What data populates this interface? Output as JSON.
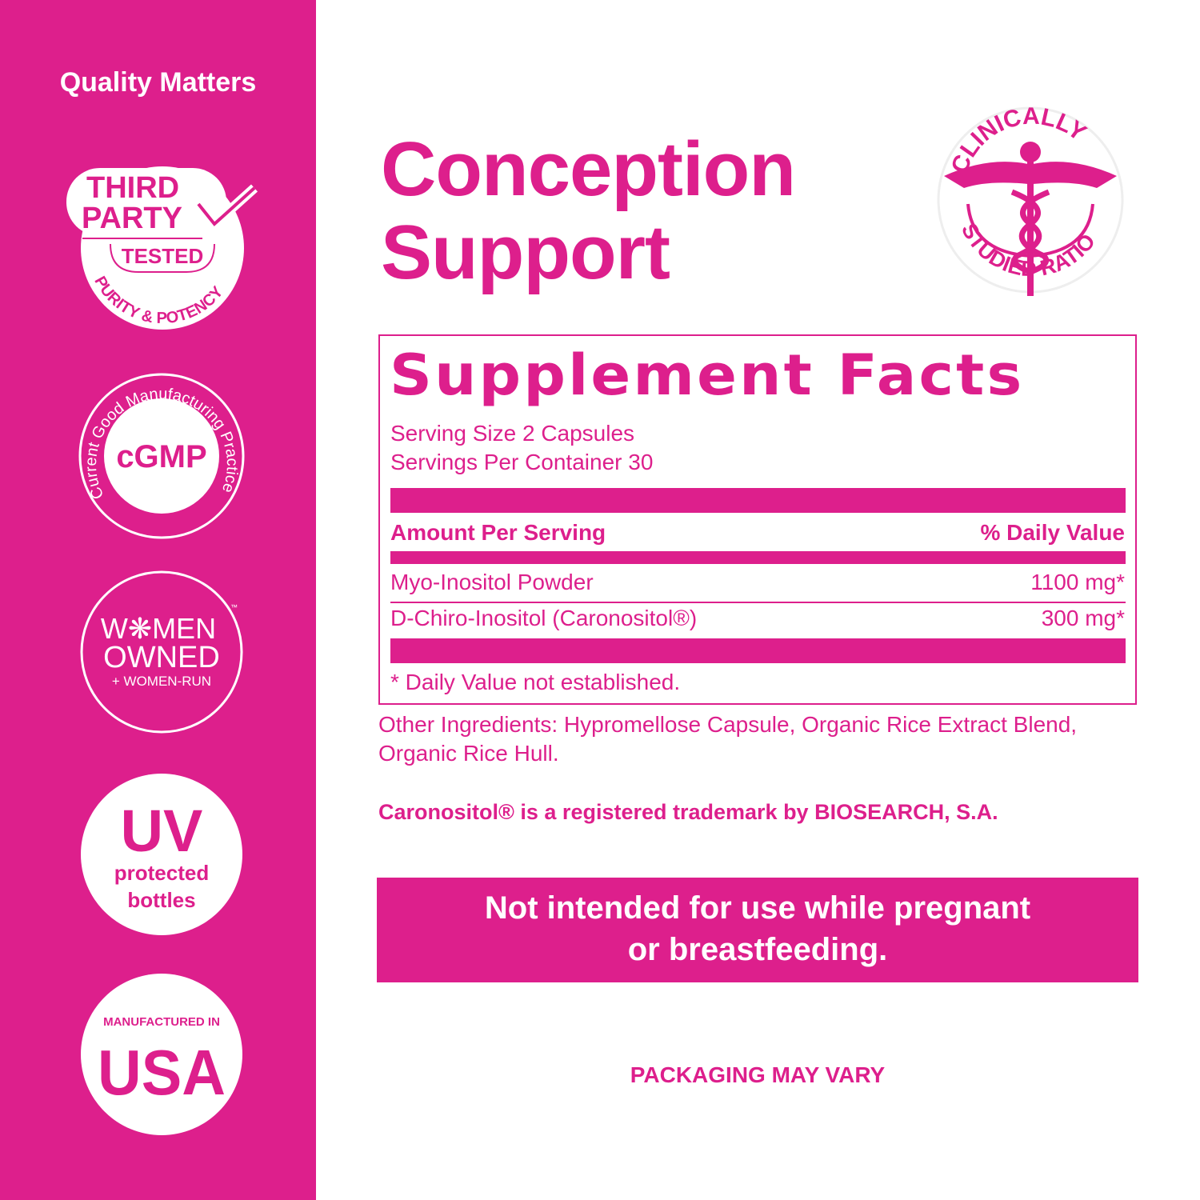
{
  "colors": {
    "brand": "#DD1F8C",
    "text_on_brand": "#FFFFFF"
  },
  "sidebar": {
    "title": "Quality Matters",
    "badges": {
      "third_party": {
        "line1": "THIRD",
        "line2": "PARTY",
        "line3": "TESTED",
        "arc": "PURITY & POTENCY",
        "icon": "checkmark-icon"
      },
      "cgmp": {
        "center": "cGMP",
        "arc": "Current Good Manufacturing Practice"
      },
      "women": {
        "line1": "W❋MEN",
        "line2": "OWNED",
        "line3": "+ WOMEN-RUN",
        "tm": "™"
      },
      "uv": {
        "line1": "UV",
        "line2": "protected",
        "line3": "bottles"
      },
      "usa": {
        "line1": "MANUFACTURED IN",
        "line2": "USA"
      }
    }
  },
  "product": {
    "title_line1": "Conception",
    "title_line2": "Support",
    "clinical_badge": {
      "top": "CLINICALLY",
      "bottom": "STUDIED RATIO",
      "icon": "caduceus-icon"
    }
  },
  "facts": {
    "title": "Supplement Facts",
    "serving_size": "Serving Size 2 Capsules",
    "servings_per_container": "Servings Per Container 30",
    "header": {
      "left": "Amount Per Serving",
      "right": "% Daily Value"
    },
    "rows": [
      {
        "name": "Myo-Inositol Powder",
        "amount": "1100 mg*"
      },
      {
        "name": "D-Chiro-Inositol (Caronositol®)",
        "amount": "300 mg*"
      }
    ],
    "footnote": "* Daily Value not established."
  },
  "other_ingredients": "Other Ingredients: Hypromellose Capsule, Organic Rice Extract Blend, Organic Rice Hull.",
  "trademark": "Caronositol® is a registered trademark by BIOSEARCH, S.A.",
  "warning": {
    "line1": "Not intended for use while pregnant",
    "line2": "or breastfeeding."
  },
  "packaging_note": "PACKAGING MAY VARY"
}
